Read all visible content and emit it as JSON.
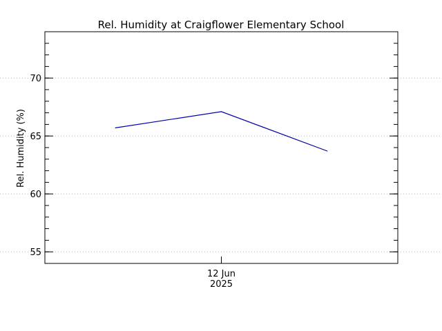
{
  "chart_data": {
    "type": "line",
    "title": "Rel. Humidity at Craigflower Elementary School",
    "ylabel": "Rel. Humidity (%)",
    "xlabel": "",
    "x_tick_labels": [
      {
        "line1": "12 Jun",
        "line2": "2025"
      }
    ],
    "yticks": [
      55,
      60,
      65,
      70
    ],
    "ylim": [
      54,
      74
    ],
    "grid": "horizontal dotted",
    "series": [
      {
        "color": "#0000aa",
        "points": [
          {
            "t": "2025-06-11 18:00",
            "y": 65.7
          },
          {
            "t": "2025-06-12 00:00",
            "y": 67.1
          },
          {
            "t": "2025-06-12 06:00",
            "y": 63.7
          }
        ]
      }
    ]
  }
}
